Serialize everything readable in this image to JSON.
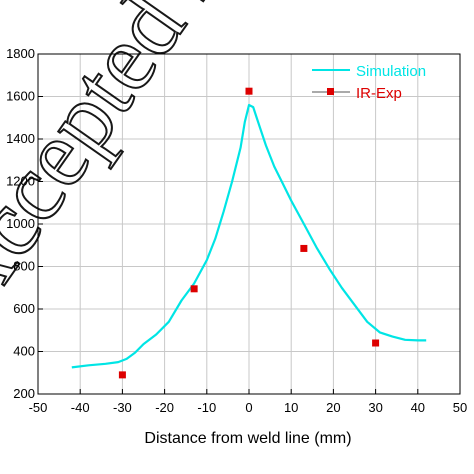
{
  "watermark": "Accepted Manuscript",
  "chart_data": {
    "type": "line",
    "title": "",
    "xlabel": "Distance from  weld line (mm)",
    "ylabel": "",
    "xlim": [
      -50,
      50
    ],
    "ylim": [
      200,
      1800
    ],
    "xticks": [
      -50,
      -40,
      -30,
      -20,
      -10,
      0,
      10,
      20,
      30,
      40,
      50
    ],
    "yticks": [
      200,
      400,
      600,
      800,
      1000,
      1200,
      1400,
      1600,
      1800
    ],
    "grid": true,
    "legend_position": "top-right",
    "series": [
      {
        "name": "Simulation",
        "kind": "line",
        "color": "#00e5e5",
        "x": [
          -42,
          -38,
          -34,
          -31,
          -29,
          -27,
          -25,
          -22,
          -19,
          -16,
          -13,
          -10,
          -8,
          -6,
          -4,
          -2,
          -1,
          0,
          1,
          2,
          4,
          6,
          8,
          10,
          13,
          16,
          19,
          22,
          25,
          28,
          31,
          34,
          37,
          40,
          42
        ],
        "y": [
          325,
          335,
          342,
          350,
          365,
          395,
          435,
          480,
          540,
          640,
          720,
          830,
          930,
          1060,
          1200,
          1360,
          1480,
          1560,
          1550,
          1490,
          1370,
          1270,
          1190,
          1110,
          1000,
          890,
          790,
          700,
          620,
          540,
          490,
          470,
          455,
          452,
          452
        ]
      },
      {
        "name": "IR-Exp",
        "kind": "marker",
        "color": "#dd0000",
        "x": [
          -30,
          -13,
          0,
          13,
          30
        ],
        "y": [
          290,
          695,
          1625,
          885,
          440
        ]
      }
    ]
  }
}
